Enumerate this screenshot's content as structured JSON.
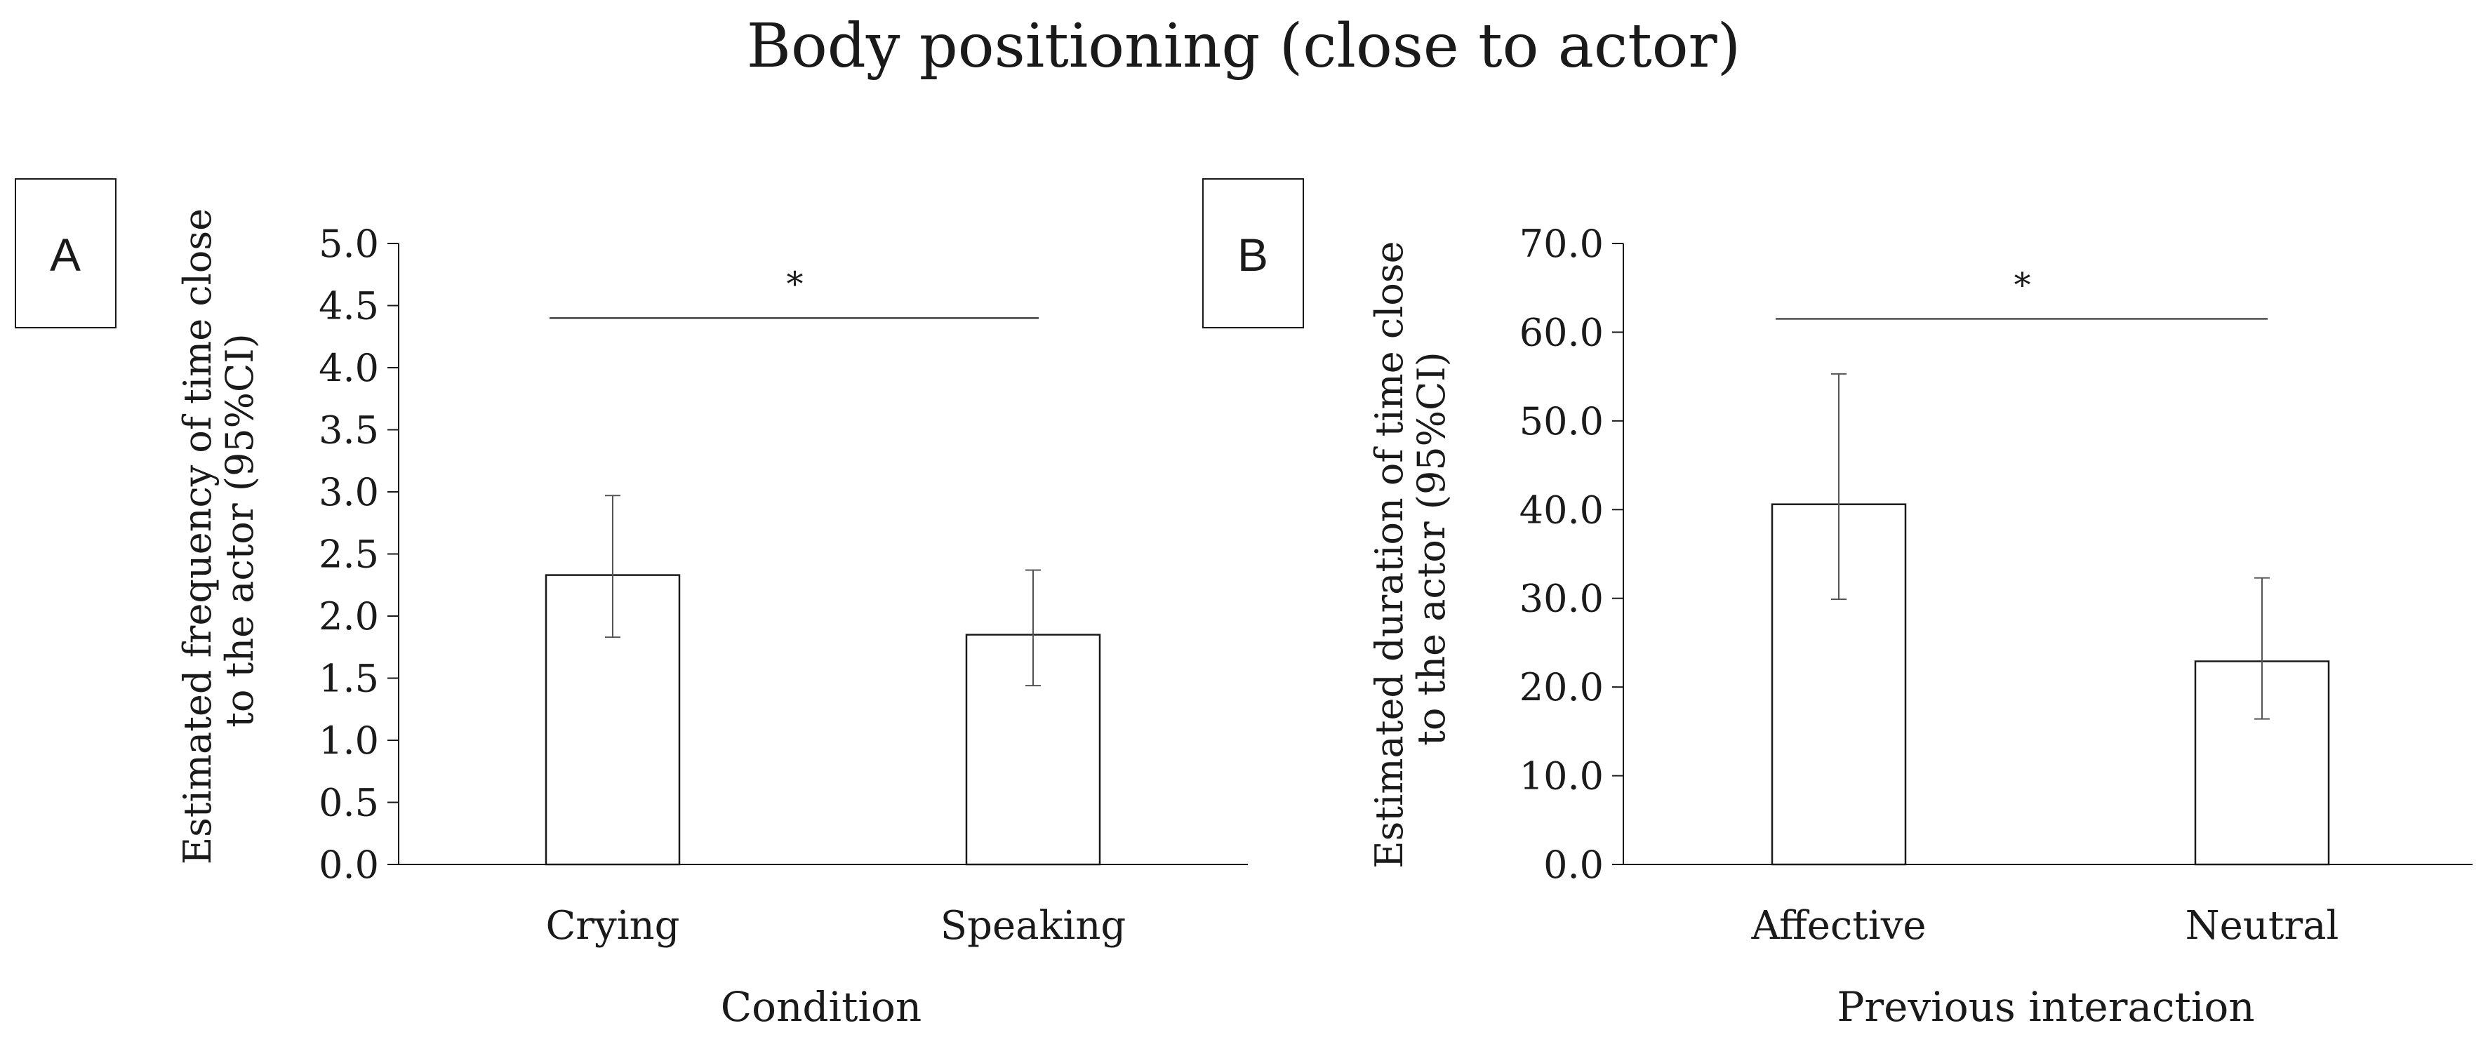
{
  "figure": {
    "title": "Body positioning (close to actor)"
  },
  "chart_data": [
    {
      "type": "bar",
      "panel_label": "A",
      "categories": [
        "Crying",
        "Speaking"
      ],
      "values": [
        2.33,
        1.85
      ],
      "error_low": [
        1.83,
        1.44
      ],
      "error_high": [
        2.97,
        2.37
      ],
      "ylim": [
        0,
        5
      ],
      "yticks": [
        "0.0",
        "0.5",
        "1.0",
        "1.5",
        "2.0",
        "2.5",
        "3.0",
        "3.5",
        "4.0",
        "4.5",
        "5.0"
      ],
      "ylabel_lines": [
        "Estimated frequency of time close",
        "to the actor (95%CI)"
      ],
      "xlabel": "Condition",
      "significance": {
        "marker": "*",
        "level": 4.4
      },
      "grid": false,
      "bar_fill": "#ffffff",
      "bar_stroke": "#1a1a1a"
    },
    {
      "type": "bar",
      "panel_label": "B",
      "categories": [
        "Affective",
        "Neutral"
      ],
      "values": [
        40.6,
        22.9
      ],
      "error_low": [
        29.9,
        16.4
      ],
      "error_high": [
        55.3,
        32.3
      ],
      "ylim": [
        0,
        70
      ],
      "yticks": [
        "0.0",
        "10.0",
        "20.0",
        "30.0",
        "40.0",
        "50.0",
        "60.0",
        "70.0"
      ],
      "ylabel_lines": [
        "Estimated duration of time close",
        "to the actor (95%CI)"
      ],
      "xlabel": "Previous interaction",
      "significance": {
        "marker": "*",
        "level": 61.5
      },
      "grid": false,
      "bar_fill": "#ffffff",
      "bar_stroke": "#1a1a1a"
    }
  ]
}
